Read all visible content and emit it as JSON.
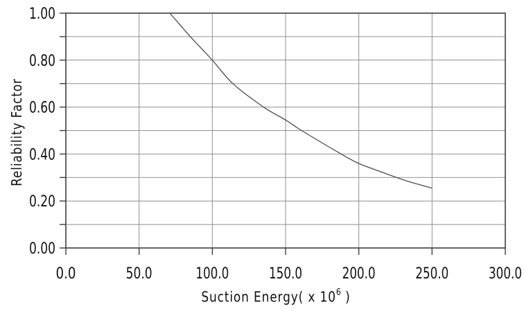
{
  "colors": {
    "background": "#ffffff",
    "axis": "#3d3d3d",
    "grid": "#8f8f8f",
    "text": "#111111",
    "curve": "#4c4c4c"
  },
  "chart_data": {
    "type": "line",
    "title": "",
    "xlabel": "Suction Energy( x 10⁶ )",
    "xlabel_parts": {
      "prefix": "Suction Energy( x 10",
      "superscript": "6",
      "suffix": " )"
    },
    "ylabel": "Reliability Factor",
    "xlim": [
      0,
      300
    ],
    "ylim": [
      0.0,
      1.0
    ],
    "x_ticks": [
      0,
      50,
      100,
      150,
      200,
      250,
      300
    ],
    "x_tick_labels": [
      "0.0",
      "50.0",
      "100.0",
      "150.0",
      "200.0",
      "250.0",
      "300.0"
    ],
    "y_ticks": [
      0.0,
      0.1,
      0.2,
      0.3,
      0.4,
      0.5,
      0.6,
      0.7,
      0.8,
      0.9,
      1.0
    ],
    "y_labeled_ticks": [
      0.0,
      0.2,
      0.4,
      0.6,
      0.8,
      1.0
    ],
    "y_tick_labels": [
      "0.00",
      "0.20",
      "0.40",
      "0.60",
      "0.80",
      "1.00"
    ],
    "grid": {
      "x_lines": [
        50,
        100,
        150,
        200,
        250
      ],
      "y_lines": [
        0.1,
        0.2,
        0.3,
        0.4,
        0.5,
        0.6,
        0.7,
        0.8,
        0.9
      ],
      "border": true
    },
    "legend": "none",
    "series": [
      {
        "name": "reliability-factor-curve",
        "points": [
          [
            71,
            1.0
          ],
          [
            85,
            0.9
          ],
          [
            100,
            0.8
          ],
          [
            114,
            0.7
          ],
          [
            135,
            0.6
          ],
          [
            150,
            0.545
          ],
          [
            161,
            0.5
          ],
          [
            188,
            0.4
          ],
          [
            200,
            0.36
          ],
          [
            217,
            0.32
          ],
          [
            233,
            0.285
          ],
          [
            250,
            0.255
          ]
        ]
      }
    ]
  }
}
